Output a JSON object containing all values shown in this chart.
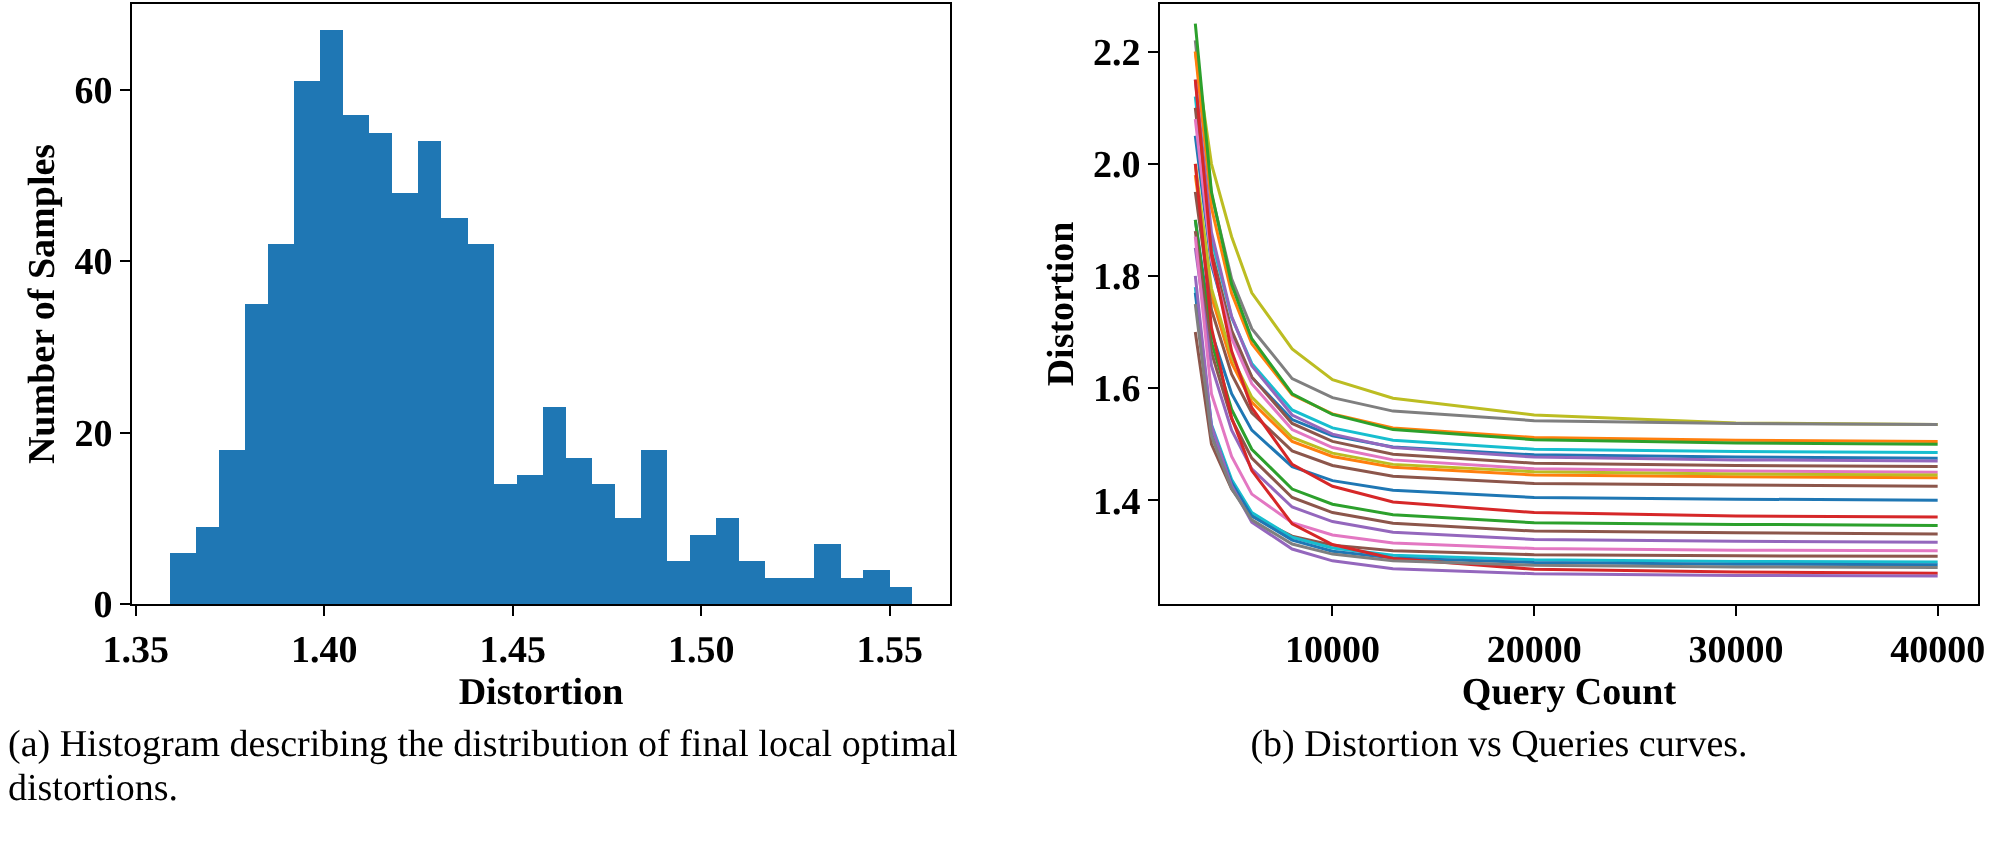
{
  "chart_data": [
    {
      "type": "histogram",
      "xlabel": "Distortion",
      "ylabel": "Number of Samples",
      "color": "#1f77b4",
      "bins": [
        1.359,
        1.366,
        1.372,
        1.379,
        1.385,
        1.392,
        1.399,
        1.405,
        1.412,
        1.418,
        1.425,
        1.431,
        1.438,
        1.445,
        1.451,
        1.458,
        1.464,
        1.471,
        1.477,
        1.484,
        1.491,
        1.497,
        1.504,
        1.51,
        1.517,
        1.524,
        1.53,
        1.537,
        1.543,
        1.55,
        1.556
      ],
      "values": [
        6,
        9,
        18,
        35,
        42,
        61,
        67,
        57,
        55,
        48,
        54,
        45,
        42,
        14,
        15,
        23,
        17,
        14,
        10,
        18,
        5,
        8,
        10,
        5,
        3,
        3,
        7,
        3,
        4,
        2
      ],
      "xlim": [
        1.349,
        1.566
      ],
      "ylim": [
        0,
        70
      ],
      "xticks": [
        {
          "value": 1.35,
          "label": "1.35"
        },
        {
          "value": 1.4,
          "label": "1.40"
        },
        {
          "value": 1.45,
          "label": "1.45"
        },
        {
          "value": 1.5,
          "label": "1.50"
        },
        {
          "value": 1.55,
          "label": "1.55"
        }
      ],
      "yticks": [
        0,
        20,
        40,
        60
      ],
      "annotations": [
        "(a) Histogram describing the distribution of final local optimal distortions."
      ]
    },
    {
      "type": "line",
      "xlabel": "Query Count",
      "ylabel": "Distortion",
      "x": [
        3200,
        4000,
        5000,
        6000,
        8000,
        10000,
        13000,
        20000,
        30000,
        40000
      ],
      "series": [
        {
          "color": "#bcbd22",
          "values": [
            2.2,
            2.0,
            1.87,
            1.77,
            1.67,
            1.615,
            1.582,
            1.552,
            1.538,
            1.535
          ]
        },
        {
          "color": "#7f7f7f",
          "values": [
            2.22,
            1.946,
            1.795,
            1.706,
            1.617,
            1.583,
            1.559,
            1.542,
            1.537,
            1.535
          ]
        },
        {
          "color": "#ff7f0e",
          "values": [
            2.2,
            1.922,
            1.769,
            1.679,
            1.588,
            1.554,
            1.529,
            1.512,
            1.507,
            1.505
          ]
        },
        {
          "color": "#2ca02c",
          "values": [
            2.25,
            1.95,
            1.785,
            1.688,
            1.59,
            1.553,
            1.526,
            1.508,
            1.502,
            1.5
          ]
        },
        {
          "color": "#17becf",
          "values": [
            2.12,
            1.866,
            1.726,
            1.644,
            1.561,
            1.529,
            1.507,
            1.491,
            1.487,
            1.485
          ]
        },
        {
          "color": "#1f77b4",
          "values": [
            2.05,
            1.82,
            1.694,
            1.619,
            1.544,
            1.515,
            1.495,
            1.481,
            1.477,
            1.475
          ]
        },
        {
          "color": "#9467bd",
          "values": [
            2.15,
            1.878,
            1.728,
            1.64,
            1.552,
            1.518,
            1.494,
            1.477,
            1.472,
            1.47
          ]
        },
        {
          "color": "#8c564b",
          "values": [
            2.1,
            1.844,
            1.703,
            1.62,
            1.537,
            1.505,
            1.482,
            1.466,
            1.462,
            1.46
          ]
        },
        {
          "color": "#e377c2",
          "values": [
            2.08,
            1.828,
            1.689,
            1.608,
            1.526,
            1.494,
            1.472,
            1.456,
            1.452,
            1.45
          ]
        },
        {
          "color": "#ff7f0e",
          "values": [
            1.98,
            1.764,
            1.645,
            1.575,
            1.505,
            1.478,
            1.459,
            1.445,
            1.442,
            1.44
          ]
        },
        {
          "color": "#bcbd22",
          "values": [
            2.0,
            1.778,
            1.656,
            1.584,
            1.512,
            1.484,
            1.464,
            1.451,
            1.447,
            1.445
          ]
        },
        {
          "color": "#8c564b",
          "values": [
            1.95,
            1.74,
            1.625,
            1.556,
            1.488,
            1.462,
            1.443,
            1.43,
            1.427,
            1.425
          ]
        },
        {
          "color": "#1f77b4",
          "values": [
            1.9,
            1.7,
            1.59,
            1.525,
            1.46,
            1.435,
            1.418,
            1.405,
            1.402,
            1.4
          ]
        },
        {
          "color": "#d62728",
          "values": [
            2.15,
            1.838,
            1.666,
            1.565,
            1.464,
            1.425,
            1.397,
            1.378,
            1.372,
            1.37
          ]
        },
        {
          "color": "#2ca02c",
          "values": [
            1.9,
            1.682,
            1.562,
            1.491,
            1.42,
            1.393,
            1.374,
            1.36,
            1.357,
            1.355
          ]
        },
        {
          "color": "#8c564b",
          "values": [
            1.88,
            1.664,
            1.545,
            1.475,
            1.405,
            1.378,
            1.359,
            1.345,
            1.342,
            1.34
          ]
        },
        {
          "color": "#9467bd",
          "values": [
            1.85,
            1.64,
            1.525,
            1.456,
            1.388,
            1.362,
            1.343,
            1.33,
            1.327,
            1.325
          ]
        },
        {
          "color": "#e377c2",
          "values": [
            1.87,
            1.59,
            1.478,
            1.411,
            1.36,
            1.338,
            1.324,
            1.314,
            1.311,
            1.31
          ]
        },
        {
          "color": "#8c564b",
          "values": [
            1.7,
            1.5,
            1.42,
            1.372,
            1.336,
            1.32,
            1.31,
            1.303,
            1.301,
            1.3
          ]
        },
        {
          "color": "#17becf",
          "values": [
            1.78,
            1.535,
            1.437,
            1.378,
            1.334,
            1.315,
            1.302,
            1.294,
            1.291,
            1.29
          ]
        },
        {
          "color": "#1f77b4",
          "values": [
            1.77,
            1.528,
            1.431,
            1.372,
            1.329,
            1.309,
            1.297,
            1.289,
            1.286,
            1.285
          ]
        },
        {
          "color": "#d62728",
          "values": [
            2.0,
            1.708,
            1.547,
            1.453,
            1.358,
            1.321,
            1.296,
            1.277,
            1.272,
            1.27
          ]
        },
        {
          "color": "#9467bd",
          "values": [
            1.8,
            1.533,
            1.426,
            1.361,
            1.313,
            1.292,
            1.278,
            1.269,
            1.266,
            1.265
          ]
        },
        {
          "color": "#7f7f7f",
          "values": [
            1.75,
            1.515,
            1.421,
            1.365,
            1.322,
            1.304,
            1.292,
            1.284,
            1.281,
            1.28
          ]
        }
      ],
      "xlim": [
        1450,
        42000
      ],
      "ylim": [
        1.215,
        2.285
      ],
      "xticks": [
        10000,
        20000,
        30000,
        40000
      ],
      "yticks": [
        {
          "value": 1.4,
          "label": "1.4"
        },
        {
          "value": 1.6,
          "label": "1.6"
        },
        {
          "value": 1.8,
          "label": "1.8"
        },
        {
          "value": 2.0,
          "label": "2.0"
        },
        {
          "value": 2.2,
          "label": "2.2"
        }
      ],
      "annotations": [
        "(b) Distortion vs Queries curves."
      ]
    }
  ]
}
